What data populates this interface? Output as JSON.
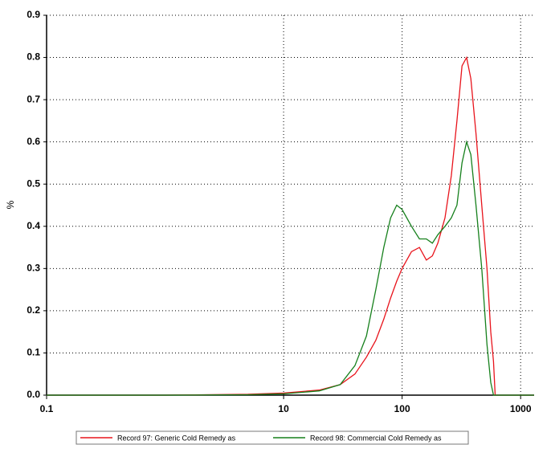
{
  "chart_data": {
    "type": "line",
    "y_label": "%",
    "log_x": true,
    "grid": true,
    "x": [
      0.1,
      1,
      5,
      10,
      20,
      30,
      40,
      50,
      60,
      70,
      80,
      90,
      100,
      120,
      140,
      160,
      180,
      200,
      230,
      260,
      290,
      320,
      350,
      380,
      420,
      470,
      520,
      560,
      590,
      610,
      1300
    ],
    "series": [
      {
        "name": "Record 97: Generic Cold Remedy as",
        "color": "#e8131b",
        "values": [
          0,
          0,
          0.002,
          0.005,
          0.012,
          0.025,
          0.05,
          0.09,
          0.13,
          0.18,
          0.23,
          0.27,
          0.3,
          0.34,
          0.35,
          0.32,
          0.33,
          0.36,
          0.42,
          0.52,
          0.65,
          0.78,
          0.8,
          0.75,
          0.62,
          0.45,
          0.3,
          0.15,
          0.08,
          0,
          0
        ]
      },
      {
        "name": "Record 98: Commercial Cold Remedy as",
        "color": "#16801c",
        "values": [
          0,
          0,
          0.001,
          0.003,
          0.01,
          0.025,
          0.07,
          0.14,
          0.25,
          0.35,
          0.42,
          0.45,
          0.44,
          0.4,
          0.37,
          0.37,
          0.36,
          0.38,
          0.4,
          0.42,
          0.45,
          0.55,
          0.6,
          0.57,
          0.45,
          0.3,
          0.12,
          0.03,
          0,
          0,
          0
        ]
      }
    ],
    "xlim": [
      0.1,
      1300
    ],
    "xticks": [
      0.1,
      10,
      100,
      1000
    ],
    "ylim": [
      0,
      0.9
    ],
    "yticks": [
      {
        "value": 0,
        "label": "0.0"
      },
      0.1,
      0.2,
      0.3,
      0.4,
      0.5,
      0.6,
      0.7,
      0.8,
      0.9
    ]
  }
}
